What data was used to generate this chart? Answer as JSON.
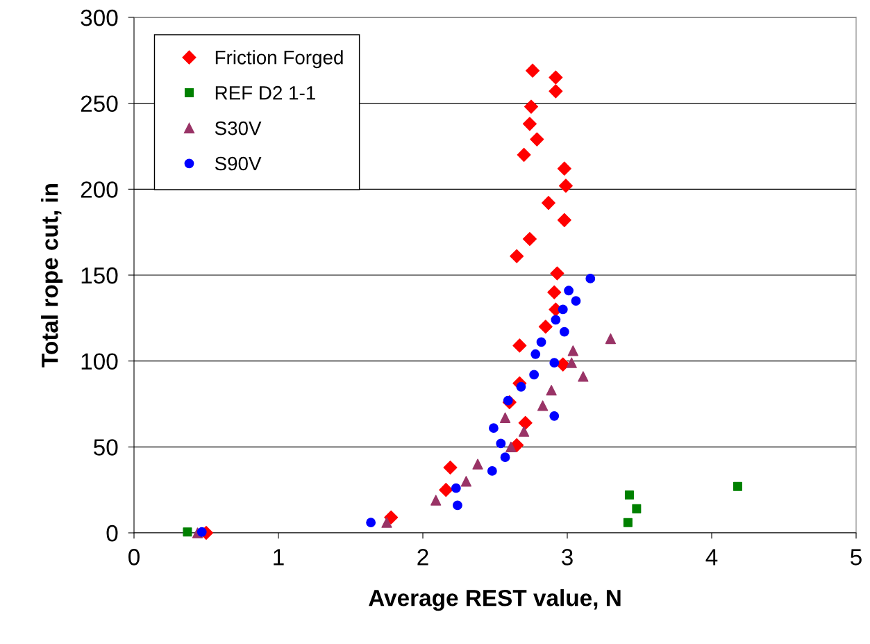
{
  "chart_data": {
    "type": "scatter",
    "xlabel": "Average REST value, N",
    "ylabel": "Total rope cut, in",
    "xlim": [
      0,
      5
    ],
    "xticks": [
      0,
      1,
      2,
      3,
      4,
      5
    ],
    "ylim": [
      0,
      300
    ],
    "yticks": [
      0,
      50,
      100,
      150,
      200,
      250,
      300
    ],
    "grid": "y",
    "legend": "top left",
    "series": [
      {
        "name": "Friction Forged",
        "color": "#ff0000",
        "marker": "diamond",
        "x": [
          2.76,
          2.92,
          2.92,
          2.75,
          2.74,
          2.79,
          2.7,
          2.98,
          2.99,
          2.87,
          2.98,
          2.74,
          2.65,
          2.93,
          2.91,
          2.92,
          2.85,
          2.67,
          2.97,
          2.67,
          2.6,
          2.71,
          2.65,
          2.19,
          2.16,
          1.78,
          0.5
        ],
        "values": [
          269,
          265,
          257,
          248,
          238,
          229,
          220,
          212,
          202,
          192,
          182,
          171,
          161,
          151,
          140,
          130,
          120,
          109,
          98,
          87,
          76,
          64,
          51,
          38,
          25,
          9,
          0
        ]
      },
      {
        "name": "REF D2 1-1",
        "color": "#008000",
        "marker": "square",
        "x": [
          0.37,
          3.42,
          3.43,
          3.48,
          4.18
        ],
        "values": [
          0.5,
          6,
          22,
          14,
          27
        ]
      },
      {
        "name": "S30V",
        "color": "#993366",
        "marker": "triangle",
        "x": [
          0.44,
          1.75,
          2.09,
          2.3,
          2.38,
          2.61,
          2.7,
          2.57,
          2.83,
          2.89,
          3.11,
          3.03,
          3.04,
          3.3
        ],
        "values": [
          0,
          6,
          19,
          30,
          40,
          50,
          59,
          67,
          74,
          83,
          91,
          99,
          106,
          113
        ]
      },
      {
        "name": "S90V",
        "color": "#0000ff",
        "marker": "circle",
        "x": [
          0.47,
          1.64,
          2.24,
          2.23,
          2.48,
          2.57,
          2.54,
          2.49,
          2.91,
          2.59,
          2.68,
          2.77,
          2.78,
          2.91,
          2.82,
          2.98,
          2.92,
          2.97,
          3.06,
          3.01,
          3.16
        ],
        "values": [
          0.5,
          6,
          16,
          26,
          36,
          44,
          52,
          61,
          68,
          77,
          85,
          92,
          104,
          99,
          111,
          117,
          124,
          130,
          135,
          141,
          148
        ]
      }
    ]
  }
}
